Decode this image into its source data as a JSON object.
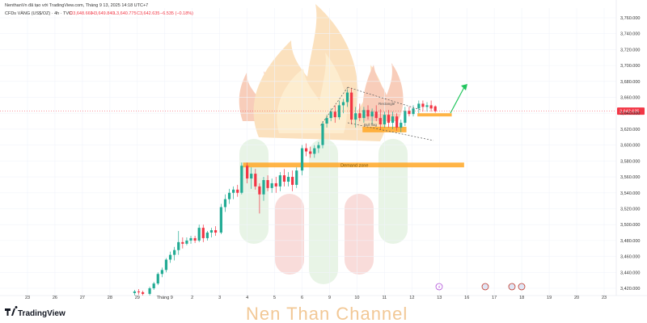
{
  "header": {
    "author_line": "NenthanVn đã tạo với TradingView.com, Tháng 9 13, 2025 14:18 UTC+7",
    "symbol_line": "CFDs VÀNG (US$/OZ) · 4h · TVC",
    "ohlc": {
      "open": "O3,648.660",
      "high": "H3,649.840",
      "low": "L3,640.775",
      "close": "C3,642.635",
      "change": "−6.535 (−0.18%)"
    }
  },
  "colors": {
    "up": "#22ab94",
    "down": "#f23645",
    "zone": "#ffa726",
    "arrow": "#22c55e",
    "price_badge": "#f23645",
    "grid": "#f0f3fa"
  },
  "chart_data": {
    "type": "candlestick",
    "title": "CFDs VÀNG (US$/OZ)",
    "interval": "4h",
    "ylim": [
      3410,
      3770
    ],
    "y_ticks": [
      "3,760.000",
      "3,740.000",
      "3,720.000",
      "3,700.000",
      "3,680.000",
      "3,660.000",
      "3,640.000",
      "3,620.000",
      "3,600.000",
      "3,580.000",
      "3,560.000",
      "3,540.000",
      "3,520.000",
      "3,500.000",
      "3,480.000",
      "3,460.000",
      "3,440.000",
      "3,420.000"
    ],
    "y_tick_values": [
      3760,
      3740,
      3720,
      3700,
      3680,
      3660,
      3640,
      3620,
      3600,
      3580,
      3560,
      3540,
      3520,
      3500,
      3480,
      3460,
      3440,
      3420
    ],
    "x_ticks": [
      "23",
      "26",
      "27",
      "28",
      "29",
      "Tháng 9",
      "2",
      "3",
      "4",
      "5",
      "6",
      "9",
      "10",
      "11",
      "12",
      "13",
      "16",
      "17",
      "18",
      "19",
      "20",
      "23"
    ],
    "x_tick_slots": [
      1,
      2,
      3,
      4,
      5,
      6,
      7,
      8,
      9,
      10,
      11,
      12,
      13,
      14,
      15,
      16,
      17,
      18,
      19,
      20,
      21,
      22
    ],
    "current_price": "3,642.635",
    "current_price_value": 3642.635,
    "candles": [
      {
        "slot": 4.9,
        "o": 3414,
        "h": 3418,
        "l": 3411,
        "c": 3416
      },
      {
        "slot": 5.05,
        "o": 3416,
        "h": 3419,
        "l": 3412,
        "c": 3415
      },
      {
        "slot": 5.2,
        "o": 3415,
        "h": 3417,
        "l": 3411,
        "c": 3413
      },
      {
        "slot": 5.45,
        "o": 3413,
        "h": 3422,
        "l": 3411,
        "c": 3420
      },
      {
        "slot": 5.6,
        "o": 3420,
        "h": 3428,
        "l": 3418,
        "c": 3426
      },
      {
        "slot": 5.75,
        "o": 3426,
        "h": 3440,
        "l": 3424,
        "c": 3438
      },
      {
        "slot": 5.9,
        "o": 3438,
        "h": 3446,
        "l": 3434,
        "c": 3443
      },
      {
        "slot": 6.05,
        "o": 3443,
        "h": 3458,
        "l": 3440,
        "c": 3456
      },
      {
        "slot": 6.2,
        "o": 3456,
        "h": 3466,
        "l": 3452,
        "c": 3462
      },
      {
        "slot": 6.35,
        "o": 3462,
        "h": 3472,
        "l": 3455,
        "c": 3468
      },
      {
        "slot": 6.5,
        "o": 3468,
        "h": 3492,
        "l": 3462,
        "c": 3478
      },
      {
        "slot": 6.65,
        "o": 3478,
        "h": 3484,
        "l": 3470,
        "c": 3476
      },
      {
        "slot": 6.8,
        "o": 3476,
        "h": 3484,
        "l": 3474,
        "c": 3480
      },
      {
        "slot": 6.95,
        "o": 3480,
        "h": 3486,
        "l": 3476,
        "c": 3483
      },
      {
        "slot": 7.1,
        "o": 3483,
        "h": 3486,
        "l": 3477,
        "c": 3480
      },
      {
        "slot": 7.25,
        "o": 3480,
        "h": 3500,
        "l": 3478,
        "c": 3496
      },
      {
        "slot": 7.4,
        "o": 3496,
        "h": 3500,
        "l": 3478,
        "c": 3483
      },
      {
        "slot": 7.55,
        "o": 3483,
        "h": 3492,
        "l": 3480,
        "c": 3490
      },
      {
        "slot": 7.7,
        "o": 3490,
        "h": 3496,
        "l": 3484,
        "c": 3493
      },
      {
        "slot": 7.85,
        "o": 3493,
        "h": 3498,
        "l": 3486,
        "c": 3490
      },
      {
        "slot": 8.05,
        "o": 3490,
        "h": 3526,
        "l": 3488,
        "c": 3522
      },
      {
        "slot": 8.2,
        "o": 3522,
        "h": 3538,
        "l": 3516,
        "c": 3532
      },
      {
        "slot": 8.35,
        "o": 3532,
        "h": 3545,
        "l": 3526,
        "c": 3540
      },
      {
        "slot": 8.5,
        "o": 3540,
        "h": 3548,
        "l": 3532,
        "c": 3544
      },
      {
        "slot": 8.65,
        "o": 3544,
        "h": 3550,
        "l": 3535,
        "c": 3540
      },
      {
        "slot": 8.8,
        "o": 3540,
        "h": 3578,
        "l": 3538,
        "c": 3574
      },
      {
        "slot": 9.0,
        "o": 3574,
        "h": 3578,
        "l": 3552,
        "c": 3558
      },
      {
        "slot": 9.15,
        "o": 3558,
        "h": 3572,
        "l": 3545,
        "c": 3564
      },
      {
        "slot": 9.3,
        "o": 3564,
        "h": 3570,
        "l": 3544,
        "c": 3548
      },
      {
        "slot": 9.45,
        "o": 3548,
        "h": 3552,
        "l": 3514,
        "c": 3538
      },
      {
        "slot": 9.6,
        "o": 3538,
        "h": 3560,
        "l": 3530,
        "c": 3556
      },
      {
        "slot": 9.75,
        "o": 3556,
        "h": 3562,
        "l": 3542,
        "c": 3546
      },
      {
        "slot": 9.9,
        "o": 3546,
        "h": 3558,
        "l": 3540,
        "c": 3552
      },
      {
        "slot": 10.05,
        "o": 3552,
        "h": 3560,
        "l": 3540,
        "c": 3548
      },
      {
        "slot": 10.2,
        "o": 3548,
        "h": 3566,
        "l": 3542,
        "c": 3562
      },
      {
        "slot": 10.35,
        "o": 3562,
        "h": 3570,
        "l": 3548,
        "c": 3554
      },
      {
        "slot": 10.5,
        "o": 3554,
        "h": 3566,
        "l": 3548,
        "c": 3560
      },
      {
        "slot": 10.65,
        "o": 3560,
        "h": 3568,
        "l": 3542,
        "c": 3550
      },
      {
        "slot": 10.8,
        "o": 3550,
        "h": 3572,
        "l": 3546,
        "c": 3568
      },
      {
        "slot": 11.0,
        "o": 3568,
        "h": 3600,
        "l": 3562,
        "c": 3596
      },
      {
        "slot": 11.15,
        "o": 3596,
        "h": 3602,
        "l": 3586,
        "c": 3592
      },
      {
        "slot": 11.3,
        "o": 3592,
        "h": 3598,
        "l": 3584,
        "c": 3589
      },
      {
        "slot": 11.45,
        "o": 3589,
        "h": 3600,
        "l": 3584,
        "c": 3596
      },
      {
        "slot": 11.6,
        "o": 3596,
        "h": 3604,
        "l": 3590,
        "c": 3600
      },
      {
        "slot": 11.75,
        "o": 3600,
        "h": 3630,
        "l": 3596,
        "c": 3627
      },
      {
        "slot": 11.9,
        "o": 3627,
        "h": 3638,
        "l": 3622,
        "c": 3634
      },
      {
        "slot": 12.05,
        "o": 3634,
        "h": 3646,
        "l": 3630,
        "c": 3642
      },
      {
        "slot": 12.2,
        "o": 3642,
        "h": 3650,
        "l": 3628,
        "c": 3635
      },
      {
        "slot": 12.35,
        "o": 3635,
        "h": 3656,
        "l": 3632,
        "c": 3650
      },
      {
        "slot": 12.5,
        "o": 3650,
        "h": 3658,
        "l": 3640,
        "c": 3654
      },
      {
        "slot": 12.65,
        "o": 3654,
        "h": 3670,
        "l": 3648,
        "c": 3666
      },
      {
        "slot": 12.8,
        "o": 3666,
        "h": 3672,
        "l": 3626,
        "c": 3632
      },
      {
        "slot": 12.95,
        "o": 3632,
        "h": 3648,
        "l": 3622,
        "c": 3640
      },
      {
        "slot": 13.1,
        "o": 3640,
        "h": 3652,
        "l": 3630,
        "c": 3634
      },
      {
        "slot": 13.25,
        "o": 3634,
        "h": 3648,
        "l": 3628,
        "c": 3644
      },
      {
        "slot": 13.4,
        "o": 3644,
        "h": 3650,
        "l": 3632,
        "c": 3636
      },
      {
        "slot": 13.55,
        "o": 3636,
        "h": 3646,
        "l": 3626,
        "c": 3642
      },
      {
        "slot": 13.7,
        "o": 3642,
        "h": 3650,
        "l": 3630,
        "c": 3634
      },
      {
        "slot": 13.85,
        "o": 3634,
        "h": 3645,
        "l": 3620,
        "c": 3626
      },
      {
        "slot": 14.0,
        "o": 3626,
        "h": 3642,
        "l": 3622,
        "c": 3638
      },
      {
        "slot": 14.15,
        "o": 3638,
        "h": 3644,
        "l": 3622,
        "c": 3628
      },
      {
        "slot": 14.3,
        "o": 3628,
        "h": 3642,
        "l": 3620,
        "c": 3636
      },
      {
        "slot": 14.45,
        "o": 3636,
        "h": 3640,
        "l": 3618,
        "c": 3622
      },
      {
        "slot": 14.6,
        "o": 3622,
        "h": 3632,
        "l": 3616,
        "c": 3628
      },
      {
        "slot": 14.75,
        "o": 3628,
        "h": 3648,
        "l": 3624,
        "c": 3643
      },
      {
        "slot": 14.9,
        "o": 3643,
        "h": 3648,
        "l": 3636,
        "c": 3639
      },
      {
        "slot": 15.05,
        "o": 3639,
        "h": 3650,
        "l": 3636,
        "c": 3646
      },
      {
        "slot": 15.25,
        "o": 3646,
        "h": 3656,
        "l": 3640,
        "c": 3652
      },
      {
        "slot": 15.4,
        "o": 3652,
        "h": 3656,
        "l": 3642,
        "c": 3648
      },
      {
        "slot": 15.55,
        "o": 3648,
        "h": 3654,
        "l": 3642,
        "c": 3650
      },
      {
        "slot": 15.7,
        "o": 3650,
        "h": 3656,
        "l": 3642,
        "c": 3646
      },
      {
        "slot": 15.85,
        "o": 3648.66,
        "h": 3649.84,
        "l": 3640.775,
        "c": 3642.635
      }
    ],
    "zones": [
      {
        "label": "Demand zone",
        "y_top": 3578,
        "y_bottom": 3572,
        "slot_start": 8.85,
        "slot_end": 16.9
      },
      {
        "label": "",
        "y_top": 3623,
        "y_bottom": 3616,
        "slot_start": 13.2,
        "slot_end": 14.8
      },
      {
        "label": "",
        "y_top": 3640,
        "y_bottom": 3636,
        "slot_start": 15.2,
        "slot_end": 16.45
      }
    ],
    "annotations": [
      "Rectangle",
      "Bull flag"
    ],
    "grid": true
  },
  "brand": {
    "name": "TradingView",
    "watermark": "Nen Than Channel"
  }
}
